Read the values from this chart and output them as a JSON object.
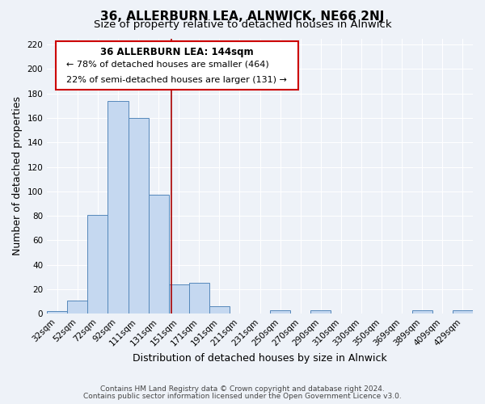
{
  "title": "36, ALLERBURN LEA, ALNWICK, NE66 2NJ",
  "subtitle": "Size of property relative to detached houses in Alnwick",
  "xlabel": "Distribution of detached houses by size in Alnwick",
  "ylabel": "Number of detached properties",
  "bar_labels": [
    "32sqm",
    "52sqm",
    "72sqm",
    "92sqm",
    "111sqm",
    "131sqm",
    "151sqm",
    "171sqm",
    "191sqm",
    "211sqm",
    "231sqm",
    "250sqm",
    "270sqm",
    "290sqm",
    "310sqm",
    "330sqm",
    "350sqm",
    "369sqm",
    "389sqm",
    "409sqm",
    "429sqm"
  ],
  "bar_heights": [
    2,
    11,
    81,
    174,
    160,
    97,
    24,
    25,
    6,
    0,
    0,
    3,
    0,
    3,
    0,
    0,
    0,
    0,
    3,
    0,
    3
  ],
  "bar_color": "#c5d8f0",
  "bar_edge_color": "#5588bb",
  "ylim": [
    0,
    225
  ],
  "yticks": [
    0,
    20,
    40,
    60,
    80,
    100,
    120,
    140,
    160,
    180,
    200,
    220
  ],
  "vline_color": "#aa0000",
  "annotation_title": "36 ALLERBURN LEA: 144sqm",
  "annotation_line1": "← 78% of detached houses are smaller (464)",
  "annotation_line2": "22% of semi-detached houses are larger (131) →",
  "footer1": "Contains HM Land Registry data © Crown copyright and database right 2024.",
  "footer2": "Contains public sector information licensed under the Open Government Licence v3.0.",
  "background_color": "#eef2f8",
  "grid_color": "#ffffff",
  "title_fontsize": 11,
  "subtitle_fontsize": 9.5,
  "axis_label_fontsize": 9,
  "tick_fontsize": 7.5,
  "footer_fontsize": 6.5
}
